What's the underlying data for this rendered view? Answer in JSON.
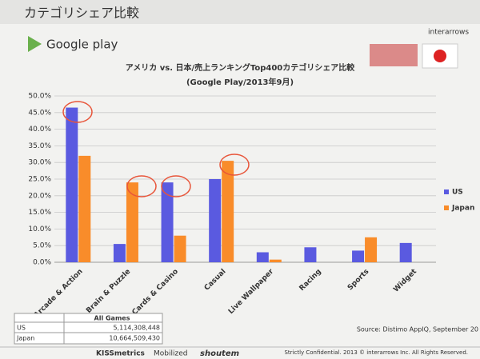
{
  "slide_title": "カテゴリシェア比較",
  "brand": "Google play",
  "company": "interarrows",
  "chart_data": {
    "type": "bar",
    "title": "アメリカ vs. 日本/売上ランキングTop400カテゴリシェア比較",
    "subtitle": "(Google Play/2013年9月)",
    "categories": [
      "Arcade & Action",
      "Brain & Puzzle",
      "Cards & Casino",
      "Casual",
      "Live Wallpaper",
      "Racing",
      "Sports",
      "Widget"
    ],
    "series": [
      {
        "name": "US",
        "color": "#5a5ae0",
        "values": [
          46.5,
          5.5,
          24,
          25,
          3,
          4.5,
          3.5,
          5.8
        ]
      },
      {
        "name": "Japan",
        "color": "#f98c2a",
        "values": [
          32,
          24,
          8,
          30.5,
          0.8,
          0,
          7.5,
          0
        ]
      }
    ],
    "ylim": [
      0,
      50
    ],
    "yticks": [
      {
        "value": 0,
        "label": "0.0%"
      },
      {
        "value": 5,
        "label": "5.0%"
      },
      {
        "value": 10,
        "label": "10.0%"
      },
      {
        "value": 15,
        "label": "15.0%"
      },
      {
        "value": 20,
        "label": "20.0%"
      },
      {
        "value": 25,
        "label": "25.0%"
      },
      {
        "value": 30,
        "label": "30.0%"
      },
      {
        "value": 35,
        "label": "35.0%"
      },
      {
        "value": 40,
        "label": "40.0%"
      },
      {
        "value": 45,
        "label": "45.0%"
      },
      {
        "value": 50,
        "label": "50.0%"
      }
    ],
    "grid": true,
    "legend": "right"
  },
  "table": {
    "header": "All Games",
    "rows": [
      [
        "US",
        "5,114,308,448"
      ],
      [
        "Japan",
        "10,664,509,430"
      ]
    ]
  },
  "source": "Source: Distimo AppIQ, September 20",
  "footer": "Strictly Confidential. 2013 © interarrows Inc. All Rights Reserved.",
  "logos": [
    "KISSmetrics",
    "Mobilized",
    "shoutem"
  ]
}
